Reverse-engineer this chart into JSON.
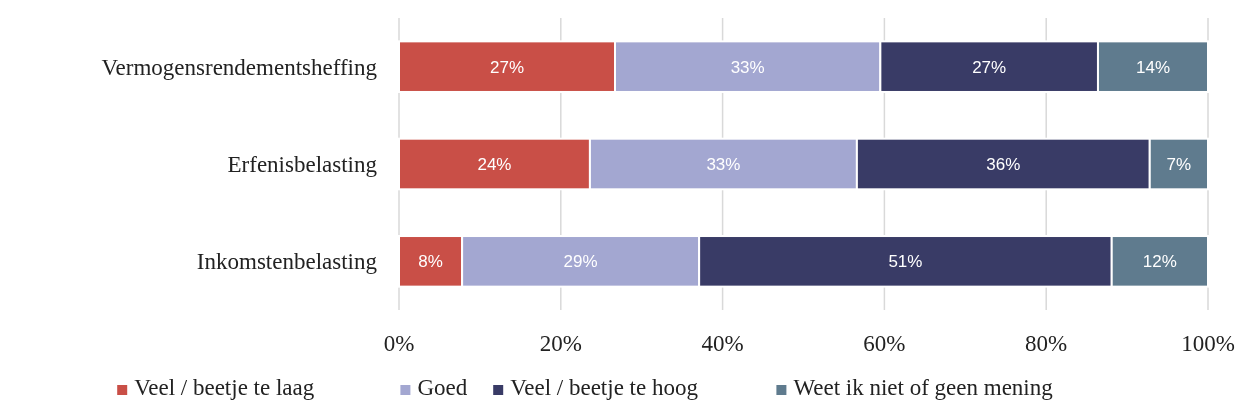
{
  "chart_data": {
    "type": "bar",
    "orientation": "horizontal",
    "stacked": true,
    "categories": [
      "Vermogensrendementsheffing",
      "Erfenisbelasting",
      "Inkomstenbelasting"
    ],
    "series": [
      {
        "name": "Veel / beetje te laag",
        "color": "#c94f47",
        "values": [
          26.7,
          23.6,
          7.8
        ],
        "value_labels": [
          "27%",
          "24%",
          "8%"
        ]
      },
      {
        "name": "Goed",
        "color": "#a3a7d1",
        "values": [
          32.8,
          33.0,
          29.3
        ],
        "value_labels": [
          "33%",
          "33%",
          "29%"
        ]
      },
      {
        "name": "Veel / beetje te hoog",
        "color": "#393b66",
        "values": [
          26.9,
          36.2,
          51.0
        ],
        "value_labels": [
          "27%",
          "36%",
          "51%"
        ]
      },
      {
        "name": "Weet ik niet of geen mening",
        "color": "#5f7b8e",
        "values": [
          13.6,
          7.2,
          11.9
        ],
        "value_labels": [
          "14%",
          "7%",
          "12%"
        ]
      }
    ],
    "xlim": [
      0,
      100
    ],
    "xticks": [
      {
        "value": 0,
        "label": "0%"
      },
      {
        "value": 20,
        "label": "20%"
      },
      {
        "value": 40,
        "label": "40%"
      },
      {
        "value": 60,
        "label": "60%"
      },
      {
        "value": 80,
        "label": "80%"
      },
      {
        "value": 100,
        "label": "100%"
      }
    ],
    "grid": "x",
    "legend": "bottom"
  }
}
